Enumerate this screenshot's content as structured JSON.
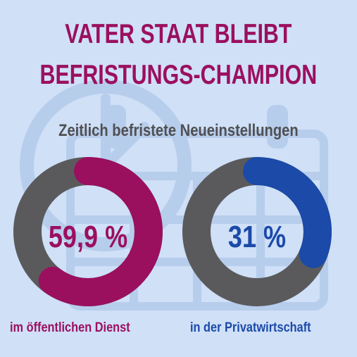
{
  "header": {
    "title_line1": "VATER STAAT BLEIBT",
    "title_line2": "BEFRISTUNGS-CHAMPION",
    "subtitle": "Zeitlich befristete Neueinstellungen"
  },
  "colors": {
    "background": "#cfe0f7",
    "ring_track": "#5a5a5c",
    "public": "#9b0f5f",
    "private": "#1b4aa8",
    "subtitle": "#505052",
    "decor": "#b7cdec"
  },
  "icons": [
    "clock-icon",
    "calendar-icon"
  ],
  "chart_data": [
    {
      "type": "pie",
      "title": "Zeitlich befristete Neueinstellungen",
      "category": "im öffentlichen Dienst",
      "value": 59.9,
      "value_label": "59,9 %",
      "max": 100
    },
    {
      "type": "pie",
      "title": "Zeitlich befristete Neueinstellungen",
      "category": "in der Privatwirtschaft",
      "value": 31,
      "value_label": "31 %",
      "max": 100
    }
  ]
}
